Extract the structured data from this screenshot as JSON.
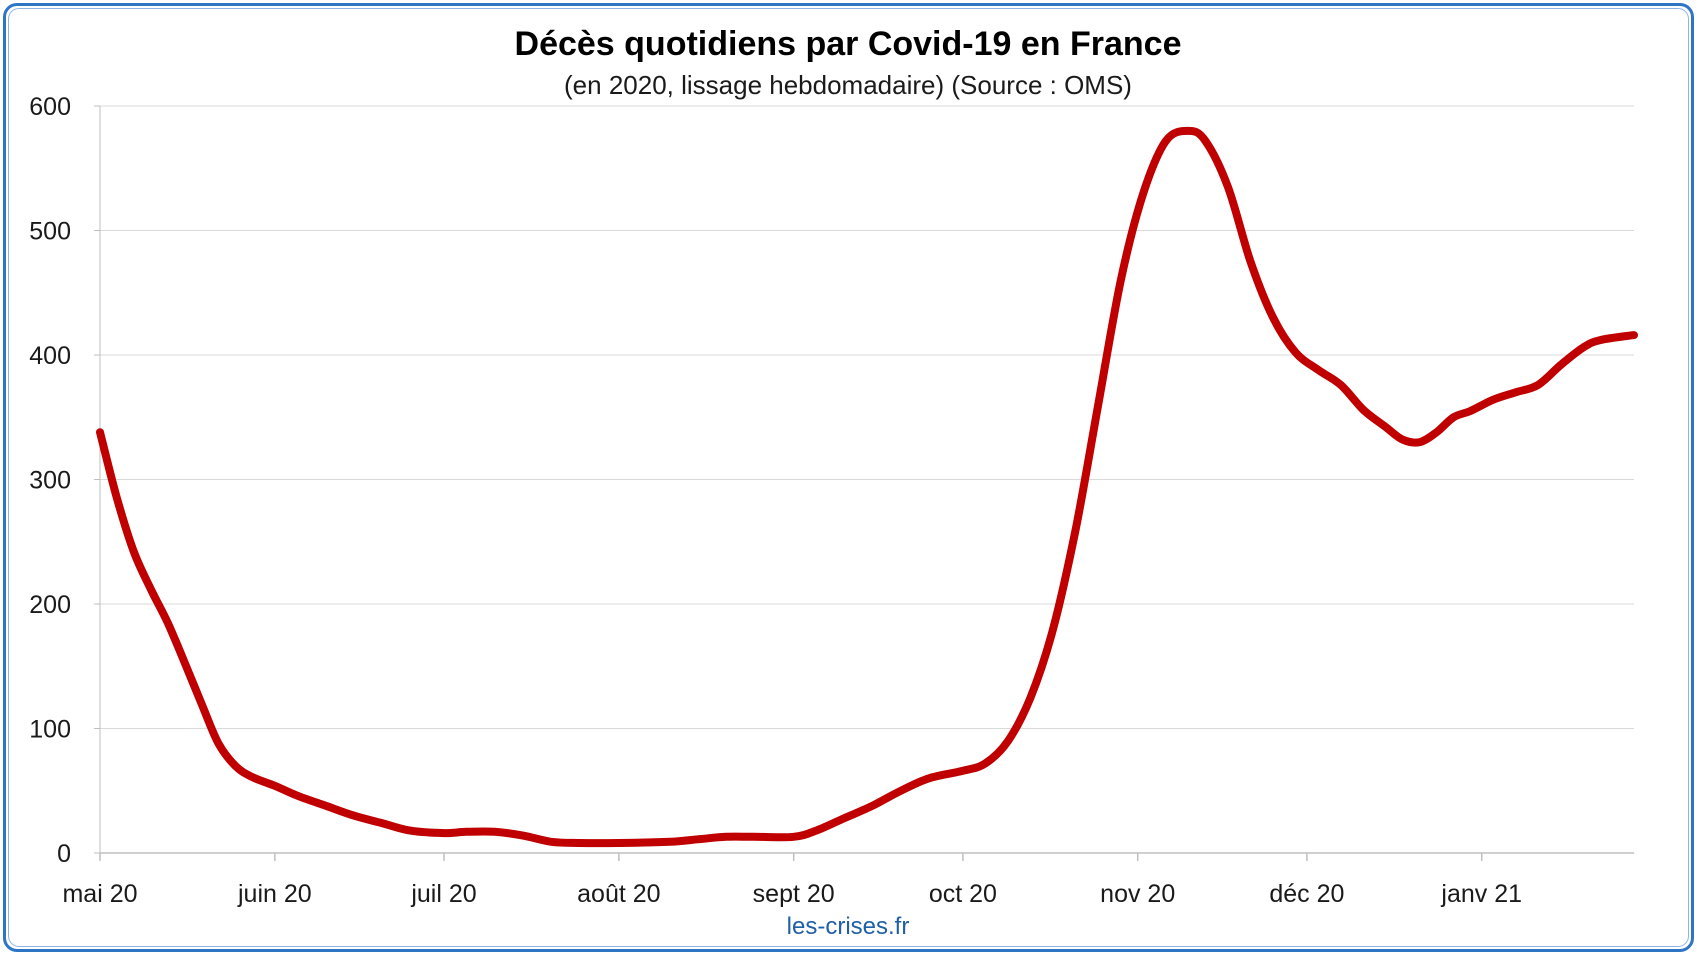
{
  "chart_data": {
    "type": "line",
    "title": "Décès quotidiens par Covid-19 en France",
    "subtitle": "(en 2020, lissage hebdomadaire) (Source : OMS)",
    "source": "les-crises.fr",
    "xlabel": "",
    "ylabel": "",
    "ylim": [
      0,
      600
    ],
    "yticks": [
      0,
      100,
      200,
      300,
      400,
      500,
      600
    ],
    "xlim": [
      "2020-05-01",
      "2021-01-28"
    ],
    "x_ticks": [
      {
        "date": "2020-05-01",
        "label": "mai 20"
      },
      {
        "date": "2020-06-01",
        "label": "juin 20"
      },
      {
        "date": "2020-07-01",
        "label": "juil 20"
      },
      {
        "date": "2020-08-01",
        "label": "août 20"
      },
      {
        "date": "2020-09-01",
        "label": "sept 20"
      },
      {
        "date": "2020-10-01",
        "label": "oct 20"
      },
      {
        "date": "2020-11-01",
        "label": "nov 20"
      },
      {
        "date": "2020-12-01",
        "label": "déc 20"
      },
      {
        "date": "2021-01-01",
        "label": "janv 21"
      }
    ],
    "grid": true,
    "line_color": "#c00000",
    "series": [
      {
        "points": [
          [
            "2020-05-01",
            338
          ],
          [
            "2020-05-04",
            285
          ],
          [
            "2020-05-07",
            242
          ],
          [
            "2020-05-10",
            212
          ],
          [
            "2020-05-13",
            185
          ],
          [
            "2020-05-16",
            153
          ],
          [
            "2020-05-19",
            120
          ],
          [
            "2020-05-22",
            88
          ],
          [
            "2020-05-25",
            70
          ],
          [
            "2020-05-28",
            61
          ],
          [
            "2020-06-01",
            54
          ],
          [
            "2020-06-05",
            46
          ],
          [
            "2020-06-10",
            38
          ],
          [
            "2020-06-15",
            30
          ],
          [
            "2020-06-20",
            24
          ],
          [
            "2020-06-25",
            18
          ],
          [
            "2020-07-01",
            16
          ],
          [
            "2020-07-05",
            17
          ],
          [
            "2020-07-10",
            17
          ],
          [
            "2020-07-15",
            14
          ],
          [
            "2020-07-20",
            9
          ],
          [
            "2020-07-25",
            8
          ],
          [
            "2020-08-01",
            8
          ],
          [
            "2020-08-10",
            9
          ],
          [
            "2020-08-15",
            11
          ],
          [
            "2020-08-20",
            13
          ],
          [
            "2020-08-25",
            13
          ],
          [
            "2020-09-01",
            13
          ],
          [
            "2020-09-05",
            18
          ],
          [
            "2020-09-10",
            28
          ],
          [
            "2020-09-15",
            38
          ],
          [
            "2020-09-20",
            50
          ],
          [
            "2020-09-25",
            60
          ],
          [
            "2020-10-01",
            66
          ],
          [
            "2020-10-05",
            72
          ],
          [
            "2020-10-09",
            90
          ],
          [
            "2020-10-13",
            125
          ],
          [
            "2020-10-17",
            180
          ],
          [
            "2020-10-21",
            260
          ],
          [
            "2020-10-25",
            360
          ],
          [
            "2020-10-29",
            460
          ],
          [
            "2020-11-02",
            530
          ],
          [
            "2020-11-06",
            572
          ],
          [
            "2020-11-10",
            580
          ],
          [
            "2020-11-13",
            572
          ],
          [
            "2020-11-17",
            535
          ],
          [
            "2020-11-21",
            475
          ],
          [
            "2020-11-25",
            430
          ],
          [
            "2020-11-29",
            402
          ],
          [
            "2020-12-03",
            388
          ],
          [
            "2020-12-07",
            376
          ],
          [
            "2020-12-11",
            356
          ],
          [
            "2020-12-15",
            342
          ],
          [
            "2020-12-18",
            332
          ],
          [
            "2020-12-21",
            330
          ],
          [
            "2020-12-24",
            338
          ],
          [
            "2020-12-27",
            350
          ],
          [
            "2020-12-30",
            355
          ],
          [
            "2021-01-03",
            364
          ],
          [
            "2021-01-07",
            370
          ],
          [
            "2021-01-11",
            376
          ],
          [
            "2021-01-15",
            392
          ],
          [
            "2021-01-19",
            406
          ],
          [
            "2021-01-22",
            412
          ],
          [
            "2021-01-28",
            416
          ]
        ]
      }
    ]
  }
}
